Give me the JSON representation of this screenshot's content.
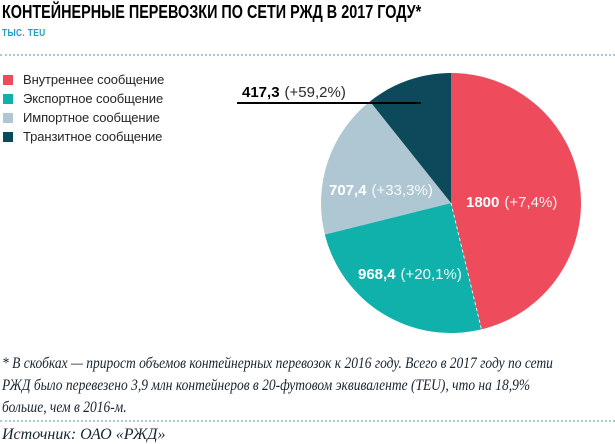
{
  "header": {
    "title": "КОНТЕЙНЕРНЫЕ ПЕРЕВОЗКИ ПО СЕТИ РЖД В 2017 ГОДУ*",
    "subtitle": "ТЫС. TEU"
  },
  "chart_data": {
    "type": "pie",
    "title": "КОНТЕЙНЕРНЫЕ ПЕРЕВОЗКИ ПО СЕТИ РЖД В 2017 ГОДУ*",
    "unit": "ТЫС. TEU",
    "categories": [
      "Внутреннее сообщение",
      "Экспортное сообщение",
      "Импортное сообщение",
      "Транзитное сообщение"
    ],
    "values": [
      1800,
      968.4,
      707.4,
      417.3
    ],
    "value_labels": [
      "1800",
      "968,4",
      "707,4",
      "417,3"
    ],
    "growth_labels": [
      "(+7,4%)",
      "(+20,1%)",
      "(+33,3%)",
      "(+59,2%)"
    ],
    "colors": [
      "#EE4B5C",
      "#10B1AB",
      "#AEC7D2",
      "#0C4A5B"
    ],
    "total": 3893.1,
    "start_angle_deg": 0,
    "direction": "clockwise",
    "legend_position": "top-left"
  },
  "footnote": {
    "lines": [
      "* В скобках — прирост объемов контейнерных перевозок к 2016 году. Всего в 2017 году по сети",
      "РЖД было перевезено 3,9 млн контейнеров в 20-футовом эквиваленте (TEU), что на 18,9%",
      "больше, чем в 2016-м."
    ]
  },
  "source": {
    "text": "Источник: ОАО «РЖД»"
  },
  "colors": {
    "subtitle_accent": "#1BA0C9",
    "dotted_rule": "#A5CDDB",
    "footnote_text": "#18242F",
    "callout_line": "#000000"
  }
}
